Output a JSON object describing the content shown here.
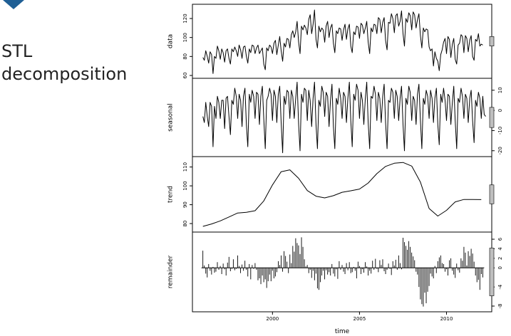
{
  "slide": {
    "title_line1": "STL",
    "title_line2": "decomposition"
  },
  "colors": {
    "accent": "#1f5f95",
    "line": "#000000",
    "scale_bar": "#bfbfbf"
  },
  "chart_data": {
    "type": "line",
    "title": "",
    "xlabel": "time",
    "x_range": [
      1995.4,
      2012.6
    ],
    "x_ticks": [
      2000,
      2005,
      2010
    ],
    "x_tick_labels": [
      "2000",
      "2005",
      "2010"
    ],
    "series_start": 1996.0,
    "series_frequency": 12,
    "panels": [
      {
        "name": "data",
        "ylabel": "data",
        "ylim": [
          60,
          132
        ],
        "yticks": [
          60,
          80,
          100,
          120
        ],
        "ytick_labels": [
          "60",
          "80",
          "100",
          "120"
        ],
        "axis_side": "left",
        "style": "line",
        "values": [
          79,
          76,
          86,
          80,
          73,
          85,
          82,
          62,
          80,
          78,
          91,
          86,
          77,
          88,
          84,
          74,
          86,
          88,
          78,
          72,
          88,
          85,
          90,
          86,
          80,
          92,
          87,
          78,
          90,
          91,
          80,
          73,
          88,
          84,
          92,
          91,
          83,
          89,
          92,
          83,
          86,
          89,
          72,
          66,
          89,
          86,
          92,
          90,
          83,
          94,
          97,
          82,
          92,
          101,
          86,
          75,
          94,
          90,
          99,
          98,
          89,
          103,
          107,
          100,
          106,
          117,
          95,
          83,
          112,
          108,
          113,
          110,
          103,
          119,
          124,
          104,
          114,
          129,
          98,
          89,
          112,
          106,
          110,
          108,
          95,
          112,
          117,
          100,
          110,
          114,
          94,
          84,
          107,
          104,
          110,
          109,
          97,
          108,
          114,
          98,
          109,
          114,
          91,
          84,
          106,
          103,
          112,
          111,
          99,
          115,
          113,
          104,
          110,
          117,
          95,
          83,
          110,
          106,
          114,
          113,
          104,
          121,
          119,
          105,
          116,
          121,
          97,
          87,
          116,
          115,
          125,
          120,
          105,
          123,
          125,
          112,
          117,
          128,
          104,
          91,
          120,
          116,
          126,
          123,
          108,
          127,
          124,
          110,
          119,
          125,
          102,
          89,
          110,
          106,
          109,
          108,
          90,
          86,
          88,
          70,
          85,
          78,
          75,
          65,
          82,
          87,
          95,
          99,
          83,
          101,
          98,
          79,
          93,
          99,
          77,
          72,
          92,
          94,
          103,
          101,
          84,
          102,
          99,
          85,
          97,
          102,
          80,
          76,
          98,
          96,
          104,
          91,
          93,
          92
        ]
      },
      {
        "name": "seasonal",
        "ylabel": "seasonal",
        "ylim": [
          -21.5,
          14.5
        ],
        "yticks": [
          -20,
          -10,
          0,
          10
        ],
        "ytick_labels": [
          "-20",
          "-10",
          "0",
          "10"
        ],
        "axis_side": "right",
        "style": "line",
        "values": [
          -3,
          -6,
          4,
          -3,
          -8,
          4,
          2,
          -18,
          2,
          -4,
          7,
          4,
          -4,
          5,
          5,
          -9,
          6,
          7,
          -3,
          -12,
          5,
          3,
          11,
          7,
          -4,
          8,
          5,
          -8,
          7,
          11,
          -7,
          -18,
          8,
          4,
          10,
          7,
          -4,
          9,
          8,
          -7,
          7,
          12,
          -4,
          -19,
          5,
          7,
          11,
          8,
          -5,
          10,
          7,
          -6,
          8,
          12,
          -6,
          -21,
          7,
          3,
          10,
          9,
          -4,
          10,
          7,
          -4,
          6,
          14,
          -7,
          -20,
          8,
          4,
          11,
          10,
          -5,
          10,
          5,
          -8,
          6,
          14,
          -7,
          -19,
          5,
          2,
          12,
          9,
          -3,
          9,
          7,
          -8,
          5,
          13,
          -8,
          -19,
          6,
          3,
          11,
          6,
          -4,
          9,
          7,
          -6,
          6,
          14,
          -5,
          -18,
          8,
          5,
          13,
          10,
          -4,
          9,
          5,
          -7,
          6,
          14,
          -6,
          -19,
          7,
          6,
          12,
          8,
          -5,
          9,
          6,
          -6,
          7,
          13,
          -6,
          -19,
          5,
          4,
          11,
          9,
          -4,
          10,
          7,
          -5,
          6,
          12,
          -7,
          -20,
          6,
          3,
          12,
          9,
          -5,
          7,
          5,
          -7,
          8,
          13,
          -5,
          -19,
          6,
          3,
          10,
          7,
          -4,
          10,
          6,
          -6,
          6,
          11,
          -7,
          -17,
          8,
          4,
          11,
          5,
          -5,
          8,
          7,
          -7,
          4,
          12,
          -5,
          -19,
          6,
          4,
          11,
          7,
          -4,
          8,
          6,
          -6,
          6,
          10,
          -5,
          -16,
          5,
          2,
          9,
          6,
          -4,
          7,
          -2,
          -3
        ]
      },
      {
        "name": "trend",
        "ylabel": "trend",
        "ylim": [
          77,
          114
        ],
        "yticks": [
          80,
          90,
          100,
          110
        ],
        "ytick_labels": [
          "80",
          "90",
          "100",
          "110"
        ],
        "axis_side": "left",
        "style": "line",
        "x": [
          1996.0,
          1996.5,
          1997.0,
          1997.5,
          1998.0,
          1998.5,
          1999.0,
          1999.5,
          2000.0,
          2000.5,
          2001.0,
          2001.5,
          2002.0,
          2002.5,
          2003.0,
          2003.5,
          2004.0,
          2004.5,
          2005.0,
          2005.5,
          2006.0,
          2006.5,
          2007.0,
          2007.5,
          2008.0,
          2008.5,
          2009.0,
          2009.5,
          2010.0,
          2010.5,
          2011.0,
          2011.5,
          2012.0
        ],
        "values": [
          78.5,
          79.8,
          81.4,
          83.5,
          85.6,
          86.0,
          86.8,
          92.0,
          100.5,
          107.5,
          108.5,
          104.0,
          97.5,
          94.5,
          93.6,
          94.8,
          96.6,
          97.4,
          98.3,
          101.5,
          106.5,
          110.3,
          112.0,
          112.4,
          110.5,
          102.0,
          88.0,
          84.0,
          87.0,
          91.5,
          92.8,
          92.8,
          92.7
        ]
      },
      {
        "name": "remainder",
        "ylabel": "remainder",
        "ylim": [
          -8.6,
          6.9
        ],
        "yticks": [
          -8,
          -4,
          0,
          2,
          4,
          6
        ],
        "ytick_labels": [
          "-8",
          "-4",
          "0",
          "2",
          "4",
          "6"
        ],
        "axis_side": "right",
        "style": "bars",
        "values": [
          3.6,
          0.5,
          -1.2,
          -2.0,
          0.8,
          -0.6,
          -1.4,
          0.2,
          -1.0,
          -0.8,
          1.2,
          -0.4,
          0.4,
          -1.3,
          0.9,
          -0.3,
          -1.6,
          1.1,
          2.3,
          -0.7,
          -0.2,
          1.8,
          -0.5,
          -0.2,
          2.6,
          0.4,
          -1.1,
          0.7,
          -0.6,
          1.5,
          -0.4,
          -1.8,
          0.8,
          -2.4,
          0.6,
          -0.2,
          1.0,
          -0.4,
          -2.6,
          -2.2,
          -3.4,
          -1.6,
          -3.0,
          -2.4,
          -4.2,
          -2.8,
          -1.4,
          -2.8,
          -0.6,
          -2.2,
          -1.8,
          -0.9,
          1.4,
          0.6,
          2.6,
          -0.8,
          3.5,
          2.5,
          1.3,
          -1.1,
          2.8,
          1.0,
          4.6,
          3.4,
          6.2,
          5.2,
          4.7,
          2.9,
          6.4,
          4.4,
          1.8,
          0.3,
          0.6,
          -1.1,
          -0.4,
          -2.1,
          -0.6,
          -2.6,
          -1.2,
          -4.3,
          -4.6,
          -3.0,
          -1.6,
          -0.6,
          -2.4,
          -0.5,
          -1.4,
          -0.9,
          -1.6,
          0.8,
          -1.2,
          -1.8,
          -0.3,
          -2.3,
          1.4,
          -0.4,
          0.6,
          -0.8,
          -1.3,
          1.0,
          -0.5,
          1.2,
          -1.1,
          -0.9,
          0.2,
          -0.6,
          -2.2,
          1.3,
          0.4,
          -1.3,
          -0.3,
          -1.0,
          1.2,
          0.3,
          -1.6,
          -0.6,
          -1.2,
          1.5,
          -0.4,
          1.9,
          -0.2,
          -0.9,
          1.6,
          0.6,
          1.8,
          -0.7,
          -1.3,
          -0.4,
          0.9,
          -0.2,
          -1.5,
          1.4,
          0.5,
          1.7,
          -0.4,
          2.6,
          1.0,
          -0.3,
          6.3,
          5.4,
          4.6,
          3.8,
          5.6,
          4.4,
          3.2,
          2.4,
          1.6,
          -0.8,
          -1.4,
          -4.0,
          -6.6,
          -7.6,
          -8.1,
          -5.2,
          -7.4,
          -5.0,
          -3.8,
          -1.2,
          -1.8,
          -2.2,
          0.4,
          -1.1,
          1.4,
          2.2,
          2.6,
          1.0,
          0.8,
          -0.8,
          -0.3,
          -1.6,
          1.6,
          2.0,
          -0.6,
          -1.4,
          -2.1,
          0.9,
          -0.5,
          -1.0,
          2.0,
          1.5,
          4.4,
          3.2,
          0.5,
          3.5,
          2.5,
          4.0,
          3.0,
          1.3,
          -1.6,
          -3.0,
          -2.5,
          -4.6,
          -1.3,
          -2.0
        ]
      }
    ],
    "scale_bars": [
      {
        "panel": "data",
        "length": 10
      },
      {
        "panel": "seasonal",
        "length": 10
      },
      {
        "panel": "trend",
        "length": 10
      },
      {
        "panel": "remainder",
        "length": 10
      }
    ]
  }
}
